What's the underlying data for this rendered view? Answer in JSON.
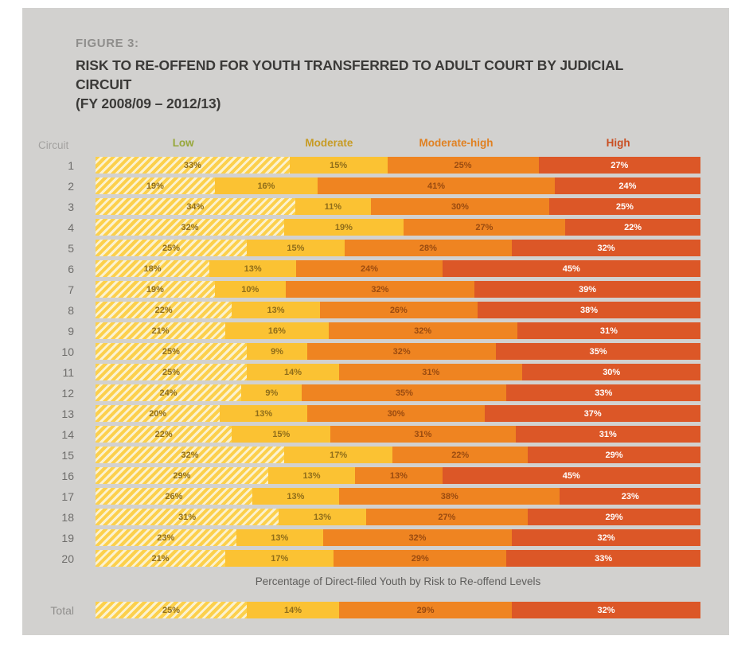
{
  "figure": {
    "label": "FIGURE 3:",
    "title_line1": "RISK TO RE-OFFEND FOR YOUTH TRANSFERRED TO ADULT COURT BY JUDICIAL CIRCUIT",
    "title_line2": "(FY 2008/09 – 2012/13)"
  },
  "chart_data": {
    "type": "bar",
    "variant": "horizontal-stacked-100-percent",
    "title": "RISK TO RE-OFFEND FOR YOUTH TRANSFERRED TO ADULT COURT BY JUDICIAL CIRCUIT (FY 2008/09 – 2012/13)",
    "row_header": "Circuit",
    "xlabel": "Percentage of Direct-filed Youth by Risk to Re-offend Levels",
    "unit": "%",
    "legend_position": "top",
    "categories": [
      "1",
      "2",
      "3",
      "4",
      "5",
      "6",
      "7",
      "8",
      "9",
      "10",
      "11",
      "12",
      "13",
      "14",
      "15",
      "16",
      "17",
      "18",
      "19",
      "20"
    ],
    "series": [
      {
        "name": "Low",
        "values": [
          33,
          19,
          34,
          32,
          25,
          18,
          19,
          22,
          21,
          25,
          25,
          24,
          20,
          22,
          32,
          29,
          26,
          31,
          23,
          21
        ],
        "total": 25
      },
      {
        "name": "Moderate",
        "values": [
          15,
          16,
          11,
          19,
          15,
          13,
          10,
          13,
          16,
          9,
          14,
          9,
          13,
          15,
          17,
          13,
          13,
          13,
          13,
          17
        ],
        "total": 14
      },
      {
        "name": "Moderate-high",
        "values": [
          25,
          41,
          30,
          27,
          28,
          24,
          32,
          26,
          32,
          32,
          31,
          35,
          30,
          31,
          22,
          13,
          38,
          27,
          32,
          29
        ],
        "total": 29
      },
      {
        "name": "High",
        "values": [
          27,
          24,
          25,
          22,
          32,
          45,
          39,
          38,
          31,
          35,
          30,
          33,
          37,
          31,
          29,
          45,
          23,
          29,
          32,
          33
        ],
        "total": 32
      }
    ],
    "total_row_label": "Total",
    "colors": {
      "card_background": "#d2d1cf",
      "low_stripe": "#fcd04c",
      "low_background": "#fbf2d0",
      "moderate": "#fbc233",
      "moderate_high": "#ef8421",
      "high": "#dc5727",
      "header_low": "#97a73a",
      "header_moderate": "#c79b24",
      "header_moderate_high": "#e08122",
      "header_high": "#c94f22"
    }
  }
}
